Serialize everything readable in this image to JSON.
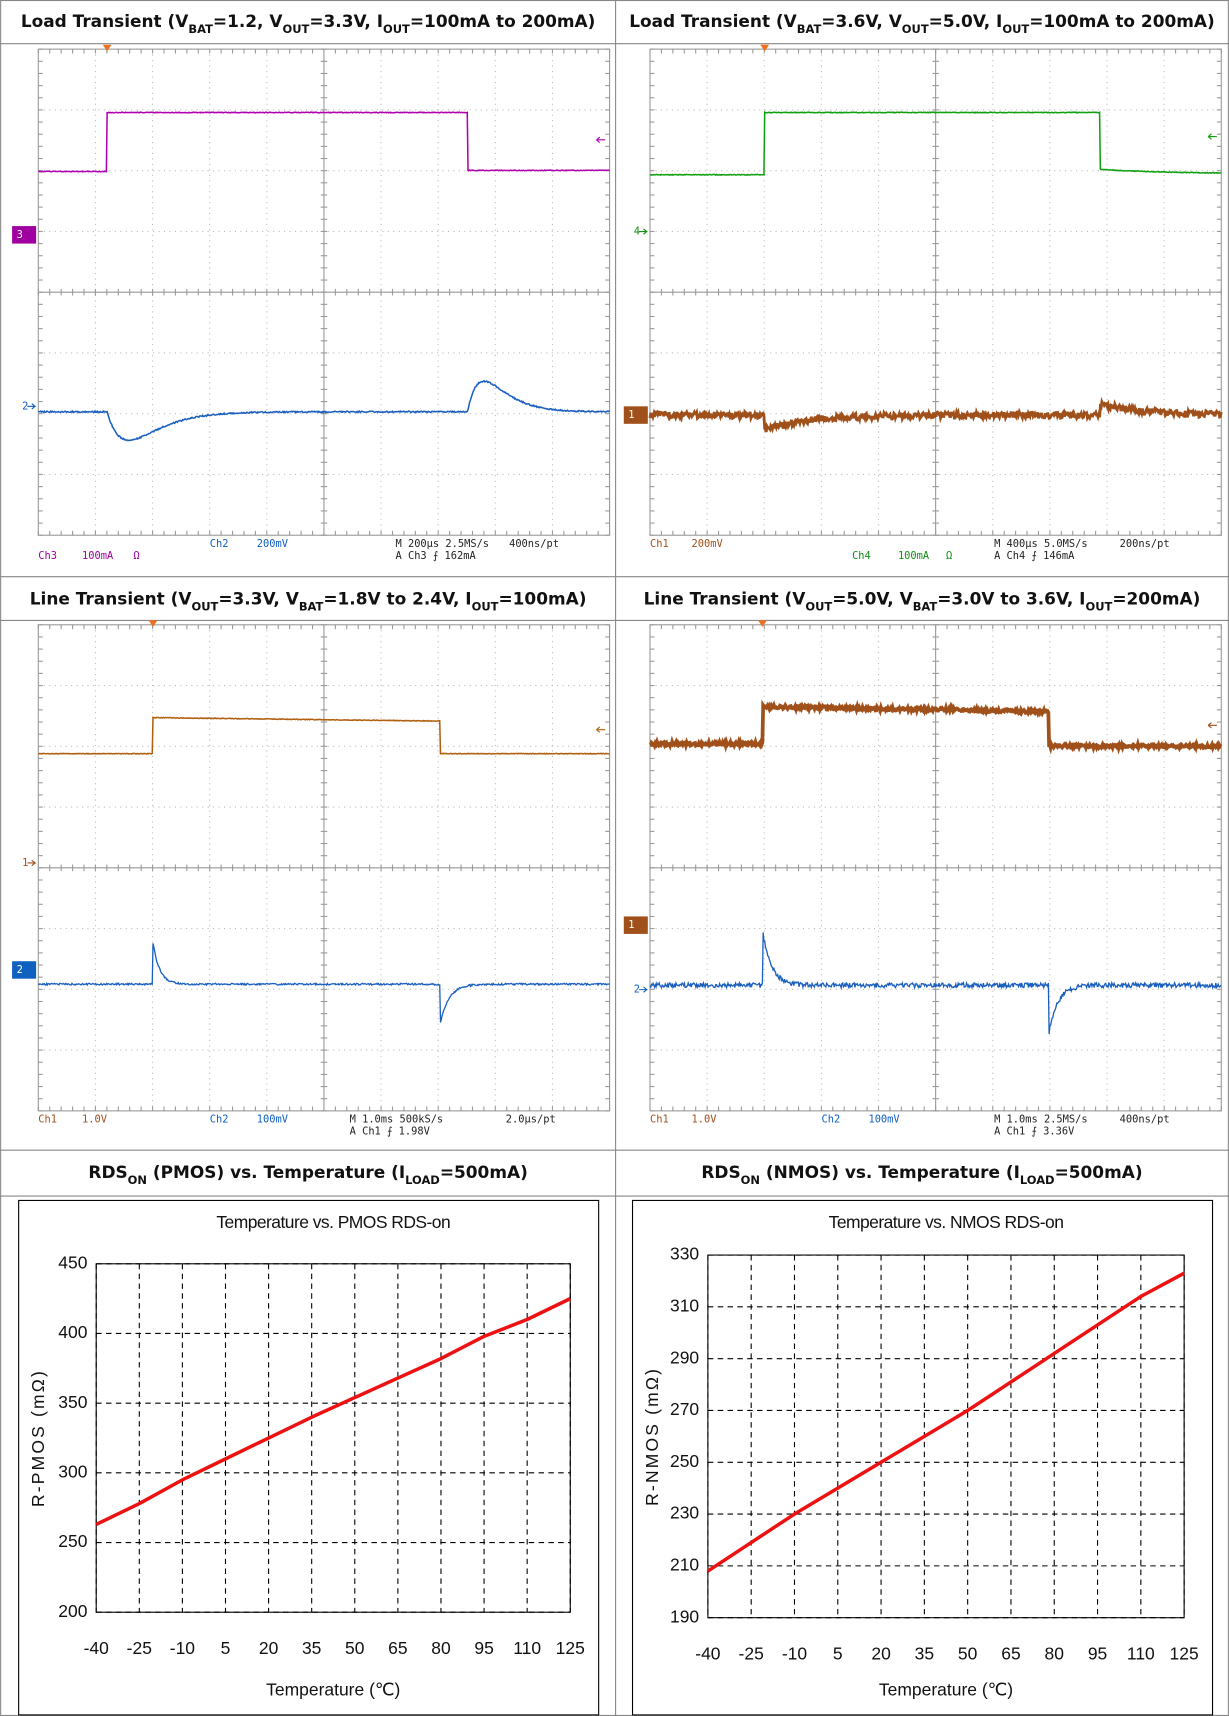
{
  "headings": [
    [
      "Load Transient (V",
      "BAT",
      "=1.2, V",
      "OUT",
      "=3.3V, I",
      "OUT",
      "=100mA to 200mA)"
    ],
    [
      "Load Transient (V",
      "BAT",
      "=3.6V, V",
      "OUT",
      "=5.0V, I",
      "OUT",
      "=100mA to 200mA)"
    ],
    [
      "Line Transient (V",
      "OUT",
      "=3.3V, V",
      "BAT",
      "=1.8V to 2.4V, I",
      "OUT",
      "=100mA)"
    ],
    [
      "Line Transient (V",
      "OUT",
      "=5.0V, V",
      "BAT",
      "=3.0V to 3.6V, I",
      "OUT",
      "=200mA)"
    ],
    [
      "RDS",
      "ON",
      " (PMOS) vs. Temperature (I",
      "LOAD",
      "=500mA)"
    ],
    [
      "RDS",
      "ON",
      " (NMOS) vs. Temperature (I",
      "LOAD",
      "=500mA)"
    ]
  ],
  "scopes": [
    {
      "markers": [
        {
          "text": "3",
          "color": "#a000a0",
          "boxed": true
        },
        {
          "text": "2",
          "color": "#1060c0",
          "boxed": false
        }
      ],
      "readouts": [
        {
          "text": "Ch2",
          "color": "#1060c0"
        },
        {
          "text": "200mV",
          "color": "#1060c0"
        },
        {
          "text": "M 200µs 2.5MS/s",
          "color": "#222222"
        },
        {
          "text": "400ns/pt",
          "color": "#222222"
        },
        {
          "text": "Ch3",
          "color": "#a000a0"
        },
        {
          "text": "100mA",
          "color": "#a000a0"
        },
        {
          "text": "Ω",
          "color": "#a000a0"
        },
        {
          "text": "A Ch3 ⨍ 162mA",
          "color": "#222222"
        }
      ]
    },
    {
      "markers": [
        {
          "text": "4",
          "color": "#109010",
          "boxed": false
        },
        {
          "text": "1",
          "color": "#a0501a",
          "boxed": true
        }
      ],
      "readouts": [
        {
          "text": "Ch1",
          "color": "#a0501a"
        },
        {
          "text": "200mV",
          "color": "#a0501a"
        },
        {
          "text": "M 400µs 5.0MS/s",
          "color": "#222222"
        },
        {
          "text": "200ns/pt",
          "color": "#222222"
        },
        {
          "text": "Ch4",
          "color": "#109010"
        },
        {
          "text": "100mA",
          "color": "#109010"
        },
        {
          "text": "Ω",
          "color": "#109010"
        },
        {
          "text": "A Ch4 ⨍ 146mA",
          "color": "#222222"
        }
      ]
    },
    {
      "markers": [
        {
          "text": "1",
          "color": "#a0501a",
          "boxed": false
        },
        {
          "text": "2",
          "color": "#1060c0",
          "boxed": true
        }
      ],
      "readouts": [
        {
          "text": "Ch1",
          "color": "#a0501a"
        },
        {
          "text": "1.0V",
          "color": "#a0501a"
        },
        {
          "text": "Ch2",
          "color": "#1060c0"
        },
        {
          "text": "100mV",
          "color": "#1060c0"
        },
        {
          "text": "M 1.0ms 500kS/s",
          "color": "#222222"
        },
        {
          "text": "2.0µs/pt",
          "color": "#222222"
        },
        {
          "text": "A Ch1 ⨍ 1.98V",
          "color": "#222222"
        }
      ]
    },
    {
      "markers": [
        {
          "text": "1",
          "color": "#a0501a",
          "boxed": true
        },
        {
          "text": "2",
          "color": "#1060c0",
          "boxed": false
        }
      ],
      "readouts": [
        {
          "text": "Ch1",
          "color": "#a0501a"
        },
        {
          "text": "1.0V",
          "color": "#a0501a"
        },
        {
          "text": "Ch2",
          "color": "#1060c0"
        },
        {
          "text": "100mV",
          "color": "#1060c0"
        },
        {
          "text": "M 1.0ms 2.5MS/s",
          "color": "#222222"
        },
        {
          "text": "400ns/pt",
          "color": "#222222"
        },
        {
          "text": "A Ch1 ⨍ 3.36V",
          "color": "#222222"
        }
      ]
    }
  ],
  "chart_data": [
    {
      "type": "line",
      "title": "Temperature vs. PMOS RDS-on",
      "x_label": "Temperature (℃)",
      "y_label": "R-PMOS (mΩ)",
      "x": [
        -40,
        -25,
        -10,
        5,
        20,
        35,
        50,
        65,
        80,
        95,
        110,
        125
      ],
      "values": [
        263,
        278,
        295,
        310,
        325,
        340,
        354,
        368,
        382,
        398,
        410,
        425
      ],
      "color": "#ee1111",
      "xlim": [
        -40,
        125
      ],
      "xticks": [
        -40,
        -25,
        -10,
        5,
        20,
        35,
        50,
        65,
        80,
        95,
        110,
        125
      ],
      "ylim": [
        200,
        450
      ],
      "yticks": [
        200,
        250,
        300,
        350,
        400,
        450
      ],
      "grid": true
    },
    {
      "type": "line",
      "title": "Temperature vs. NMOS RDS-on",
      "x_label": "Temperature (℃)",
      "y_label": "R-NMOS (mΩ)",
      "x": [
        -40,
        -25,
        -10,
        5,
        20,
        35,
        50,
        65,
        80,
        95,
        110,
        125
      ],
      "values": [
        208,
        219,
        230,
        240,
        250,
        260,
        270,
        281,
        292,
        303,
        314,
        323
      ],
      "color": "#ee1111",
      "xlim": [
        -40,
        125
      ],
      "xticks": [
        -40,
        -25,
        -10,
        5,
        20,
        35,
        50,
        65,
        80,
        95,
        110,
        125
      ],
      "ylim": [
        190,
        330
      ],
      "yticks": [
        190,
        210,
        230,
        250,
        270,
        290,
        310,
        330
      ],
      "grid": true
    }
  ]
}
